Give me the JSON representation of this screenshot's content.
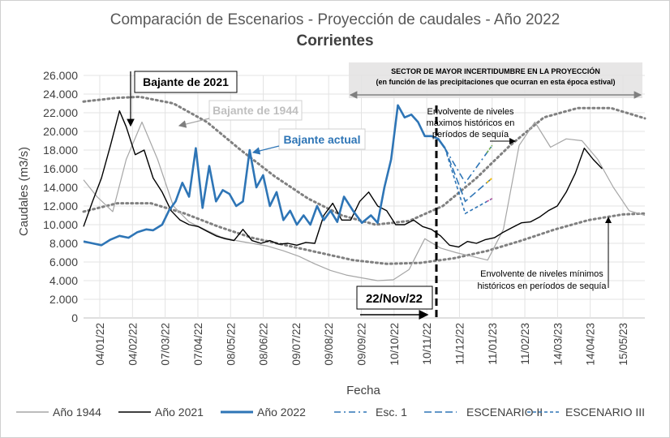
{
  "chart_data": {
    "type": "line",
    "title": "Comparación de Escenarios - Proyección de caudales - Año 2022",
    "subtitle": "Corrientes",
    "xlabel": "Fecha",
    "ylabel": "Caudales (m3/s)",
    "ylim": [
      0,
      26000
    ],
    "yticks": [
      "0",
      "2.000",
      "4.000",
      "6.000",
      "8.000",
      "10.000",
      "12.000",
      "14.000",
      "16.000",
      "18.000",
      "20.000",
      "22.000",
      "24.000",
      "26.000"
    ],
    "xticks": [
      "04/01/22",
      "04/02/22",
      "07/03/22",
      "07/04/22",
      "08/05/22",
      "08/06/22",
      "09/07/22",
      "09/08/22",
      "09/09/22",
      "10/10/22",
      "10/11/22",
      "11/12/22",
      "11/01/23",
      "11/02/23",
      "14/03/23",
      "14/04/23",
      "15/05/23"
    ],
    "legend_position": "bottom",
    "grid": true,
    "series": [
      {
        "name": "Año 1944",
        "color": "#a6a6a6",
        "x_days": [
          0,
          12,
          26,
          38,
          52,
          66,
          80,
          94,
          108,
          122,
          136,
          150,
          164,
          178,
          192,
          206,
          220,
          234,
          248,
          262,
          276,
          290,
          304,
          318,
          332,
          346,
          360,
          374,
          388,
          402,
          416,
          430,
          444,
          458,
          472,
          486,
          500
        ],
        "values": [
          14800,
          13000,
          11400,
          17000,
          21000,
          17000,
          12000,
          10300,
          9500,
          8700,
          8300,
          8000,
          7700,
          7200,
          6600,
          5800,
          5100,
          4600,
          4300,
          4000,
          4100,
          5200,
          8500,
          7500,
          7000,
          6600,
          6200,
          9500,
          18500,
          21000,
          18300,
          19200,
          19000,
          17000,
          14000,
          11500,
          11000
        ]
      },
      {
        "name": "Año 2021",
        "color": "#000000",
        "x_days": [
          0,
          8,
          16,
          24,
          32,
          38,
          46,
          54,
          62,
          70,
          78,
          86,
          94,
          102,
          110,
          118,
          126,
          134,
          142,
          150,
          158,
          166,
          174,
          182,
          190,
          198,
          206,
          214,
          222,
          230,
          238,
          246,
          254,
          262,
          270,
          278,
          286,
          294,
          302,
          310,
          318,
          326,
          334,
          342,
          350,
          358,
          366,
          374,
          382,
          390,
          398,
          406,
          414,
          422,
          430,
          438,
          446,
          454,
          462
        ],
        "values": [
          9800,
          12500,
          15000,
          18500,
          22200,
          20500,
          17500,
          18000,
          15000,
          13500,
          11500,
          10500,
          10000,
          9800,
          9300,
          8800,
          8500,
          8300,
          9500,
          8300,
          8000,
          8300,
          7900,
          8000,
          7800,
          8100,
          8000,
          11000,
          12300,
          10500,
          10500,
          12500,
          13500,
          12000,
          11500,
          10000,
          10000,
          10500,
          9800,
          9500,
          8800,
          7800,
          7600,
          8200,
          8000,
          8400,
          8600,
          9200,
          9700,
          10200,
          10300,
          10800,
          11500,
          12000,
          13500,
          15500,
          18200,
          17000,
          16000
        ]
      },
      {
        "name": "Año 2022",
        "color": "#2e75b6",
        "x_days": [
          0,
          8,
          16,
          24,
          32,
          40,
          48,
          56,
          62,
          70,
          76,
          82,
          88,
          94,
          100,
          106,
          112,
          118,
          124,
          130,
          136,
          142,
          148,
          154,
          160,
          166,
          172,
          178,
          184,
          190,
          196,
          202,
          208,
          214,
          220,
          226,
          232,
          240,
          248,
          256,
          262,
          268,
          274,
          280,
          286,
          292,
          298,
          304,
          310,
          316,
          322
        ],
        "values": [
          8200,
          8000,
          7800,
          8400,
          8800,
          8600,
          9200,
          9500,
          9400,
          10000,
          11500,
          12500,
          14500,
          13000,
          18200,
          11800,
          16300,
          12500,
          13700,
          13300,
          12000,
          12500,
          18000,
          14000,
          15300,
          12000,
          13500,
          10500,
          11500,
          10000,
          11000,
          10000,
          12000,
          10500,
          11500,
          10300,
          13000,
          11500,
          10200,
          11000,
          10200,
          14000,
          17000,
          22800,
          21500,
          21800,
          21000,
          19500,
          19500,
          19200,
          18200
        ]
      }
    ],
    "scenarios": [
      {
        "name": "Esc. 1",
        "color": "#2e75b6",
        "dash": "dash-dot",
        "x_days": [
          322,
          340,
          364
        ],
        "values": [
          18200,
          14500,
          18500
        ]
      },
      {
        "name": "ESCENARIO II",
        "color": "#2e75b6",
        "dash": "long-dash",
        "x_days": [
          322,
          340,
          364
        ],
        "values": [
          18200,
          12500,
          15000
        ]
      },
      {
        "name": "ESCENARIO III",
        "color": "#2e75b6",
        "dash": "short-dash",
        "x_days": [
          322,
          340,
          364
        ],
        "values": [
          18200,
          11200,
          12800
        ]
      }
    ],
    "envelopes": [
      {
        "name": "max",
        "color": "#808080",
        "x_days": [
          0,
          30,
          50,
          80,
          110,
          140,
          170,
          200,
          230,
          260,
          290,
          320,
          350,
          380,
          410,
          440,
          470,
          500
        ],
        "values": [
          23200,
          23600,
          23700,
          23000,
          21000,
          18000,
          15200,
          12800,
          11000,
          10000,
          10400,
          12000,
          15000,
          18500,
          21500,
          22500,
          22500,
          21400
        ]
      },
      {
        "name": "min",
        "color": "#808080",
        "x_days": [
          0,
          30,
          60,
          90,
          120,
          150,
          180,
          210,
          240,
          270,
          300,
          330,
          360,
          390,
          420,
          450,
          480,
          500
        ],
        "values": [
          11400,
          12300,
          12300,
          11200,
          9800,
          8600,
          7800,
          7000,
          6200,
          5800,
          5900,
          6400,
          7200,
          8300,
          9500,
          10500,
          11100,
          11200
        ]
      }
    ],
    "marker": {
      "label": "22/Nov/22",
      "x_day": 322
    },
    "annotations": {
      "bajante_2021": "Bajante de 2021",
      "bajante_1944": "Bajante de 1944",
      "bajante_actual": "Bajante actual",
      "sector_line1": "SECTOR DE MAYOR INCERTIDUMBRE EN LA PROYECCIÓN",
      "sector_line2": "(en función de las precipitaciones que ocurran en esta época estival)",
      "env_max_1": "Envolvente de niveles",
      "env_max_2": "máximos históricos en",
      "env_max_3": "períodos de sequía",
      "env_min_1": "Envolvente de niveles mínimos",
      "env_min_2": "históricos en períodos de sequía"
    }
  }
}
